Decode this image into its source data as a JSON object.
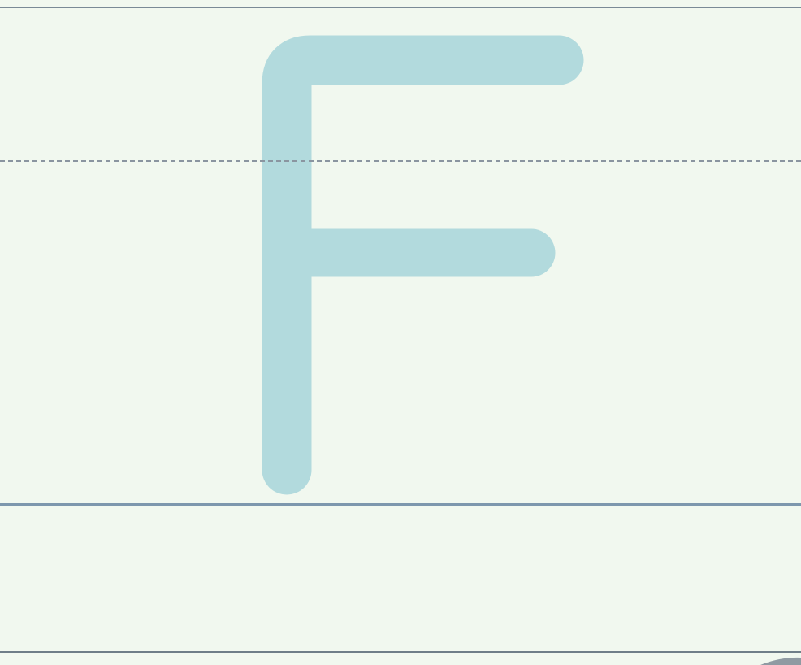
{
  "worksheet": {
    "letter": "F",
    "letter_color": "#b2dadd",
    "background_color": "#f1f8ef",
    "guide_lines": {
      "top_color": "#7a8a96",
      "midline_color": "#8a95a0",
      "midline_style": "dashed",
      "baseline_color": "#7d97ad",
      "bottom_color": "#6f7e88"
    }
  }
}
